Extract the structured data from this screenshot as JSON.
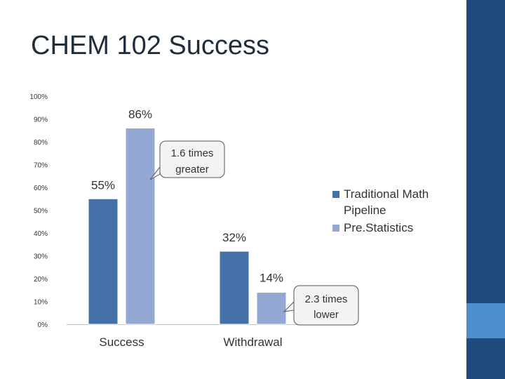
{
  "slide": {
    "title": "CHEM 102 Success",
    "colors": {
      "sidebar": "#1f4a7e",
      "accent": "#4f8fcd"
    }
  },
  "chart_data": {
    "type": "bar",
    "categories": [
      "Success",
      "Withdrawal"
    ],
    "series": [
      {
        "name": "Traditional Math Pipeline",
        "values": [
          55,
          32
        ],
        "labels": [
          "55%",
          "32%"
        ],
        "color": "#4472a8"
      },
      {
        "name": "Pre.Statistics",
        "values": [
          86,
          14
        ],
        "labels": [
          "86%",
          "14%"
        ],
        "color": "#93a9d3"
      }
    ],
    "ylim": [
      0,
      100
    ],
    "yticks": [
      "0%",
      "10%",
      "20%",
      "30%",
      "40%",
      "50%",
      "60%",
      "70%",
      "80%",
      "90%",
      "100%"
    ],
    "legend": "right",
    "annotations": [
      {
        "lines": [
          "1.6 times",
          "greater"
        ]
      },
      {
        "lines": [
          "2.3 times",
          "lower"
        ]
      }
    ]
  }
}
